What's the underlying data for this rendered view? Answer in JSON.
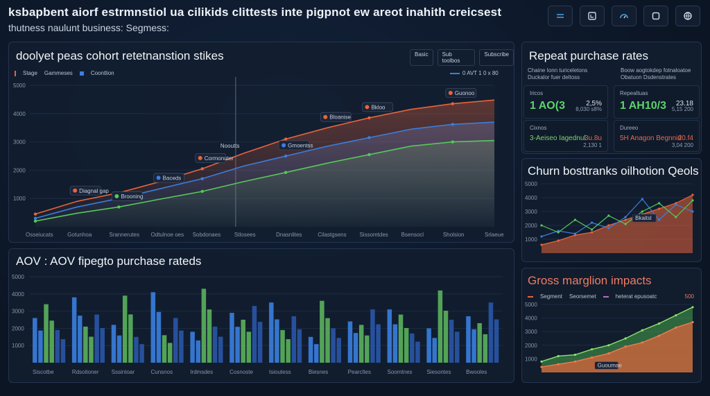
{
  "header": {
    "title": "ksbapbent aiorf estrmnstiol ua cilikids clittests inte pigpnot ew areot inahith creicsest",
    "subtitle": "thutness naulunt business: Segmess:"
  },
  "toolbar": {
    "icons": [
      "menu-icon",
      "window-icon",
      "gauge-icon",
      "square-icon",
      "globe-icon"
    ]
  },
  "colors": {
    "orange": "#e8643c",
    "blue": "#3b7ee0",
    "green": "#58c85a",
    "bg": "#0c1626"
  },
  "cohort": {
    "title": "doolyet peas cohort retetnanstion stikes",
    "toggles": [
      "Basic",
      "Sub toolbos",
      "Subscribe"
    ],
    "legend": [
      "Stage",
      "Gammeses",
      "Coontlion"
    ],
    "legend_right": "0 AVT 1 0 x 80",
    "marker_label": "Nooutts",
    "callouts": [
      "Diagnal gap",
      "Brooning",
      "Baceds",
      "Cormonuter",
      "Gmoentss",
      "Bloanise",
      "Bkloo",
      "Guonoo"
    ]
  },
  "repeat": {
    "title": "Repeat purchase rates",
    "header_left": [
      "Chaine Ionn turiceletons",
      "Duckalor fuer deltoss"
    ],
    "header_right": [
      "Boow aogtokdep fotnaloatoe",
      "Obatuon Dsdenstrates"
    ],
    "cards": [
      {
        "label": "Iricos",
        "value": "1 AO(3",
        "delta": "2,5%",
        "bar": "8,030 s8%"
      },
      {
        "label": "Repealtuas",
        "value": "1 AH10/3",
        "delta": "23.18",
        "bar": "5,15 200"
      },
      {
        "label": "Cixnos",
        "value": "3-Aeiseo Iagednul",
        "delta": "3u.8u",
        "bar": "2,130 1"
      },
      {
        "label": "Dureeo",
        "value": "5H Anagon Begnnid",
        "delta": "20.f4",
        "bar": "3,04 200"
      }
    ]
  },
  "churn": {
    "title": "Churn bosttranks oilhotion Qeols",
    "tooltip": "Bkaitsl"
  },
  "aov": {
    "title": "AOV : AOV fipegto purchase rateds"
  },
  "gross": {
    "title": "Gross marglion impacts",
    "legend": [
      "Segment",
      "Seorsemet",
      "heterat epusoatc"
    ],
    "badge": "500",
    "tooltip": "Guoumae"
  },
  "chart_data": [
    {
      "type": "line",
      "title": "doolyet peas cohort retetnanstion stikes",
      "categories": [
        "Osseiucats",
        "Gotunhoa",
        "Srannerutes",
        "Odtulnoe oes",
        "Sobdonaes",
        "Stlosees",
        "Dnasnlites",
        "Cilastgsens",
        "Sissomtdes",
        "Bsensocl",
        "Sholsion",
        "Srlaeue"
      ],
      "ylim": [
        0,
        5000
      ],
      "yticks": [
        "1000",
        "2000",
        "3000",
        "4000",
        "5000"
      ],
      "series": [
        {
          "name": "Stage",
          "values": [
            450,
            900,
            1200,
            1600,
            2050,
            2600,
            3100,
            3500,
            3850,
            4150,
            4350,
            4480
          ]
        },
        {
          "name": "Gammeses",
          "values": [
            300,
            700,
            1000,
            1350,
            1700,
            2150,
            2500,
            2850,
            3150,
            3450,
            3620,
            3700
          ]
        },
        {
          "name": "Coontlion",
          "values": [
            200,
            480,
            700,
            980,
            1250,
            1600,
            1920,
            2250,
            2550,
            2850,
            3000,
            3050
          ]
        }
      ]
    },
    {
      "type": "bar",
      "title": "AOV : AOV fipegto purchase rateds",
      "ylim": [
        0,
        5000
      ],
      "yticks": [
        "1000",
        "2000",
        "3000",
        "4000",
        "5000"
      ],
      "categories": [
        "Siscotbe",
        "Rdsoitoner",
        "Sssintoar",
        "Cunsnos",
        "Irdmsdes",
        "Cosnoste",
        "Isioutess",
        "Biesnes",
        "Pearcltes",
        "Soomtnes",
        "Siesontes",
        "Bwooles"
      ],
      "series": [
        {
          "name": "blue",
          "values": [
            2600,
            3800,
            2200,
            4100,
            1800,
            2900,
            3500,
            1500,
            2400,
            3100,
            2000,
            2700
          ]
        },
        {
          "name": "green",
          "values": [
            3400,
            2100,
            3900,
            1600,
            4300,
            2500,
            1900,
            3600,
            2200,
            2800,
            4200,
            2300
          ]
        },
        {
          "name": "navy",
          "values": [
            1900,
            2800,
            1500,
            2600,
            2100,
            3300,
            2700,
            2000,
            3100,
            1700,
            2500,
            3500
          ]
        }
      ]
    },
    {
      "type": "line",
      "title": "Churn bosttranks oilhotion Qeols",
      "ylim": [
        0,
        5000
      ],
      "yticks": [
        "1000",
        "2000",
        "3000",
        "4000",
        "5000"
      ],
      "series": [
        {
          "name": "orange",
          "values": [
            600,
            900,
            1300,
            1500,
            2000,
            2400,
            2800,
            3200,
            3600,
            4200
          ]
        },
        {
          "name": "blue",
          "values": [
            1200,
            1600,
            1400,
            2200,
            1800,
            2600,
            3900,
            2400,
            3500,
            3000
          ]
        },
        {
          "name": "green",
          "values": [
            2000,
            1500,
            2400,
            1700,
            2700,
            2100,
            3000,
            3600,
            2600,
            3800
          ]
        }
      ]
    },
    {
      "type": "area",
      "title": "Gross marglion impacts",
      "ylim": [
        0,
        5000
      ],
      "yticks": [
        "1000",
        "2000",
        "3000",
        "4000",
        "5000"
      ],
      "series": [
        {
          "name": "Segment",
          "values": [
            800,
            1200,
            1300,
            1700,
            2000,
            2500,
            3100,
            3600,
            4200,
            4800
          ]
        },
        {
          "name": "heterat epusoatc",
          "values": [
            400,
            600,
            800,
            1100,
            1400,
            1900,
            2200,
            2700,
            3300,
            3700
          ]
        }
      ]
    }
  ]
}
